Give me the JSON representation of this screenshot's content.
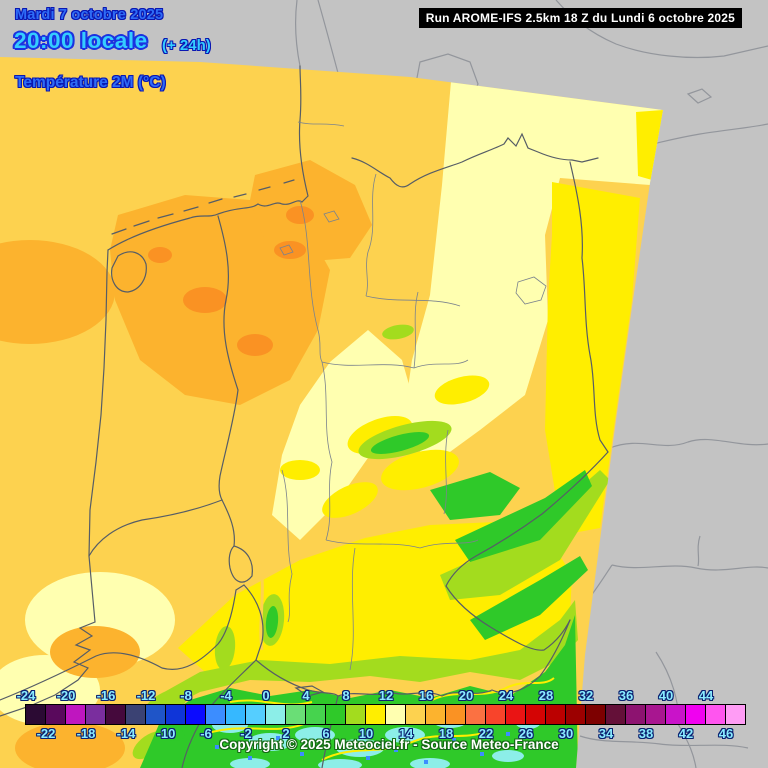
{
  "header": {
    "date_line": "Mardi 7 octobre 2025",
    "time_line": "20:00 locale",
    "run_offset": "(+ 24h)",
    "parameter": "Température 2M (°C)",
    "run_info": "Run AROME-IFS 2.5km 18 Z du Lundi 6 octobre 2025"
  },
  "footer": {
    "copyright": "Copyright © 2025 Meteociel.fr - Source Meteo-France"
  },
  "scale": {
    "unit": "°C",
    "min": -24,
    "max": 48,
    "step": 2,
    "top_labels": [
      "-24",
      "-20",
      "-16",
      "-12",
      "-8",
      "-4",
      "0",
      "4",
      "8",
      "12",
      "16",
      "20",
      "24",
      "28",
      "32",
      "36",
      "40",
      "44"
    ],
    "bottom_labels": [
      "-22",
      "-18",
      "-14",
      "-10",
      "-6",
      "-2",
      "2",
      "6",
      "10",
      "14",
      "18",
      "22",
      "26",
      "30",
      "34",
      "38",
      "42",
      "46"
    ],
    "cell_colors": [
      "#2b0a33",
      "#59095c",
      "#bf16bf",
      "#7a2e9e",
      "#45093c",
      "#3b4273",
      "#1f55c8",
      "#0f35d8",
      "#0b0bff",
      "#3c8dff",
      "#36b8ff",
      "#55ceff",
      "#8ceee8",
      "#6ade76",
      "#46d34e",
      "#2fc929",
      "#a3dc1e",
      "#ffee00",
      "#ffffb0",
      "#fdd24f",
      "#fcb32e",
      "#fa9223",
      "#fb7142",
      "#f8442b",
      "#ea1414",
      "#d40404",
      "#bb0000",
      "#9c0000",
      "#7d0000",
      "#641038",
      "#8d1370",
      "#a81690",
      "#c913c9",
      "#f001f0",
      "#ff55ef",
      "#ff9cf5"
    ]
  },
  "map": {
    "colors": {
      "gray_bg": "#c3c3c3",
      "border_dark": "#565d66",
      "border_light": "#7b838d",
      "border_gray": "#93969c",
      "sea_base": "#fdd24f",
      "orange": "#fcb32e",
      "deep_orange": "#fa9223",
      "pale_yellow": "#ffffb0",
      "bright_yellow": "#ffee00",
      "yellow_green": "#a3dc1e",
      "green": "#2fc929",
      "aqua": "#8ceee8",
      "blue_speck": "#3c8dff"
    },
    "text_colors": {
      "date_blue": "#2e6cf6",
      "time_cyan": "#35ccff",
      "outline_navy": "#0a17b2",
      "scale_label_cyan": "#8aecff",
      "copyright_outline_green": "#156b15",
      "run_box_bg": "#000000",
      "run_box_text": "#ffffff"
    }
  }
}
